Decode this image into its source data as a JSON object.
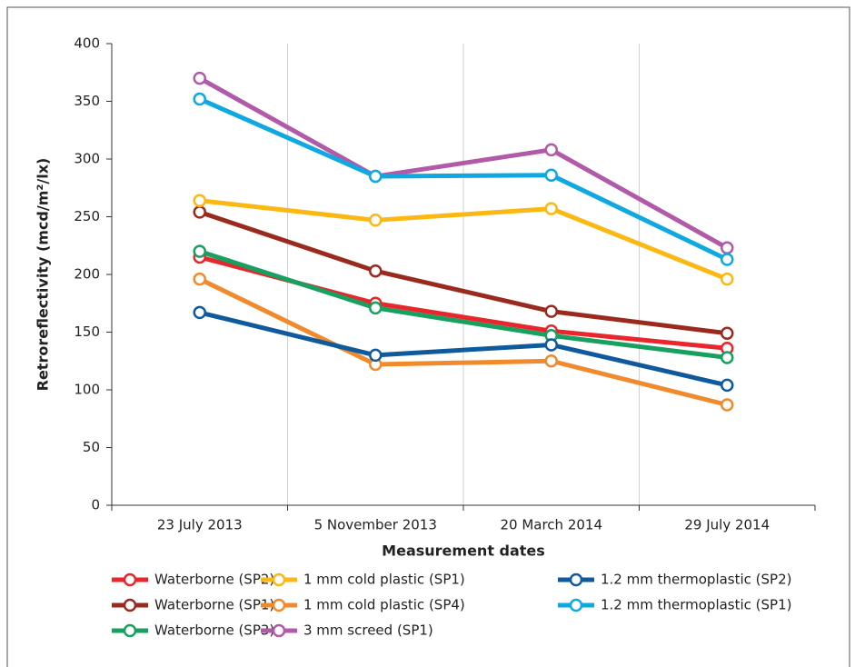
{
  "chart_data": {
    "type": "line",
    "x_label": "Measurement dates",
    "y_label": "Retroreflectivity (mcd/m²/lx)",
    "categories": [
      "23 July 2013",
      "5 November 2013",
      "20 March 2014",
      "29 July 2014"
    ],
    "ylim": [
      0,
      400
    ],
    "yticks": [
      0,
      50,
      100,
      150,
      200,
      250,
      300,
      350,
      400
    ],
    "grid": true,
    "series": [
      {
        "name": "Waterborne (SP2)",
        "color": "#e8262b",
        "values": [
          215,
          175,
          151,
          136
        ]
      },
      {
        "name": "Waterborne (SP1)",
        "color": "#9b2a1e",
        "values": [
          254,
          203,
          168,
          149
        ]
      },
      {
        "name": "Waterborne (SP3)",
        "color": "#18a060",
        "values": [
          220,
          171,
          147,
          128
        ]
      },
      {
        "name": "1 mm cold plastic (SP1)",
        "color": "#fbb813",
        "values": [
          264,
          247,
          257,
          196
        ]
      },
      {
        "name": "1 mm cold plastic (SP4)",
        "color": "#f08a2c",
        "values": [
          196,
          122,
          125,
          87
        ]
      },
      {
        "name": "3 mm screed (SP1)",
        "color": "#b05aa8",
        "values": [
          370,
          285,
          308,
          223
        ]
      },
      {
        "name": "1.2 mm thermoplastic (SP2)",
        "color": "#0f5a9c",
        "values": [
          167,
          130,
          139,
          104
        ]
      },
      {
        "name": "1.2 mm thermoplastic (SP1)",
        "color": "#0fa8e0",
        "values": [
          352,
          285,
          286,
          213
        ]
      }
    ]
  }
}
